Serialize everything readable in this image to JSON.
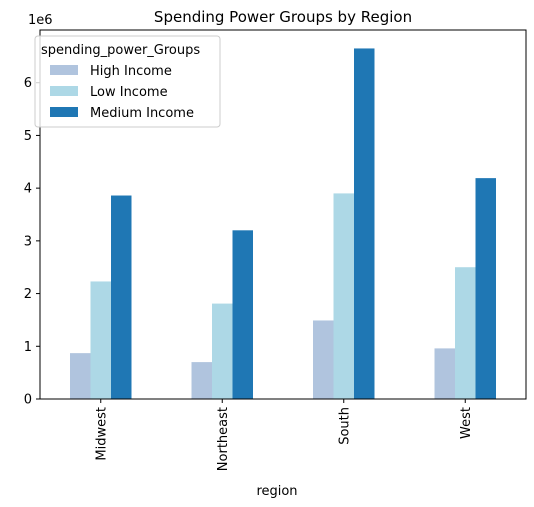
{
  "chart_data": {
    "type": "bar",
    "title": "Spending Power Groups by Region",
    "xlabel": "region",
    "ylabel": "",
    "y_offset_label": "1e6",
    "categories": [
      "Midwest",
      "Northeast",
      "South",
      "West"
    ],
    "series": [
      {
        "name": "High Income",
        "color": "#b0c4de",
        "values": [
          870000,
          700000,
          1490000,
          960000
        ]
      },
      {
        "name": "Low Income",
        "color": "#add8e6",
        "values": [
          2230000,
          1810000,
          3900000,
          2500000
        ]
      },
      {
        "name": "Medium Income",
        "color": "#1f77b4",
        "values": [
          3860000,
          3200000,
          6650000,
          4190000
        ]
      }
    ],
    "ylim": [
      0,
      7000000
    ],
    "y_ticks": [
      0,
      1000000,
      2000000,
      3000000,
      4000000,
      5000000,
      6000000
    ],
    "y_tick_labels": [
      "0",
      "1",
      "2",
      "3",
      "4",
      "5",
      "6"
    ],
    "legend": {
      "title": "spending_power_Groups",
      "position": "upper-left"
    },
    "grid": false
  }
}
